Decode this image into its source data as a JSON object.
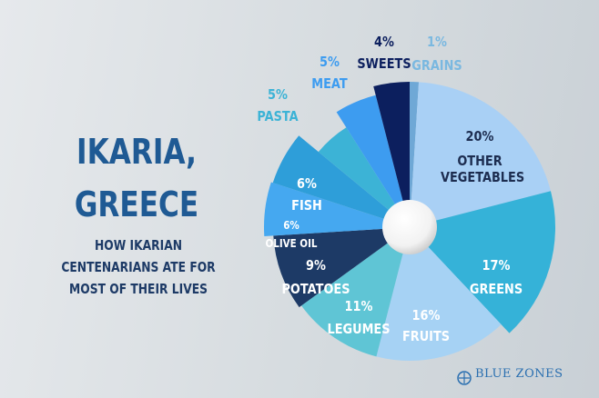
{
  "chart_data": {
    "type": "pie",
    "title": "IKARIA, GREECE",
    "subtitle": "HOW  IKARIAN CENTENARIANS ATE FOR MOST OF THEIR LIVES",
    "categories": [
      "GRAINS",
      "OTHER VEGETABLES",
      "GREENS",
      "FRUITS",
      "LEGUMES",
      "POTATOES",
      "OLIVE OIL",
      "FISH",
      "PASTA",
      "MEAT",
      "SWEETS"
    ],
    "values": [
      1,
      20,
      17,
      16,
      11,
      9,
      6,
      6,
      5,
      5,
      4
    ],
    "value_labels": [
      "1%",
      "20%",
      "17%",
      "16%",
      "11%",
      "9%",
      "6%",
      "6%",
      "5%",
      "5%",
      "4%"
    ],
    "colors": [
      "#6fa8d6",
      "#a9d0f5",
      "#35b2d8",
      "#a6d2f4",
      "#5fc5d5",
      "#1d3a66",
      "#45a8f0",
      "#2e9ed9",
      "#3cb3d6",
      "#3d9cf0",
      "#0c1f5e"
    ],
    "logo": "BLUE ZONES"
  }
}
